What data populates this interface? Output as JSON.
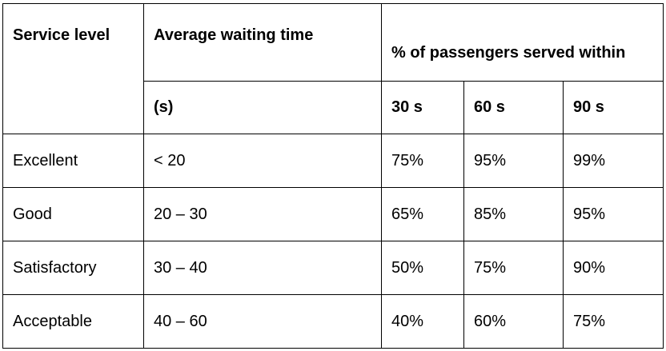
{
  "header": {
    "service_level": "Service level",
    "avg_wait_time": "Average waiting time",
    "avg_wait_unit": "(s)",
    "pct_served": "% of passengers served within",
    "col_30": "30 s",
    "col_60": "60 s",
    "col_90": "90 s"
  },
  "rows": [
    {
      "level": "Excellent",
      "wait": "< 20",
      "p30": "75%",
      "p60": "95%",
      "p90": "99%"
    },
    {
      "level": "Good",
      "wait": "20 – 30",
      "p30": "65%",
      "p60": "85%",
      "p90": "95%"
    },
    {
      "level": "Satisfactory",
      "wait": "30 – 40",
      "p30": "50%",
      "p60": "75%",
      "p90": "90%"
    },
    {
      "level": "Acceptable",
      "wait": "40 – 60",
      "p30": "40%",
      "p60": "60%",
      "p90": "75%"
    }
  ]
}
